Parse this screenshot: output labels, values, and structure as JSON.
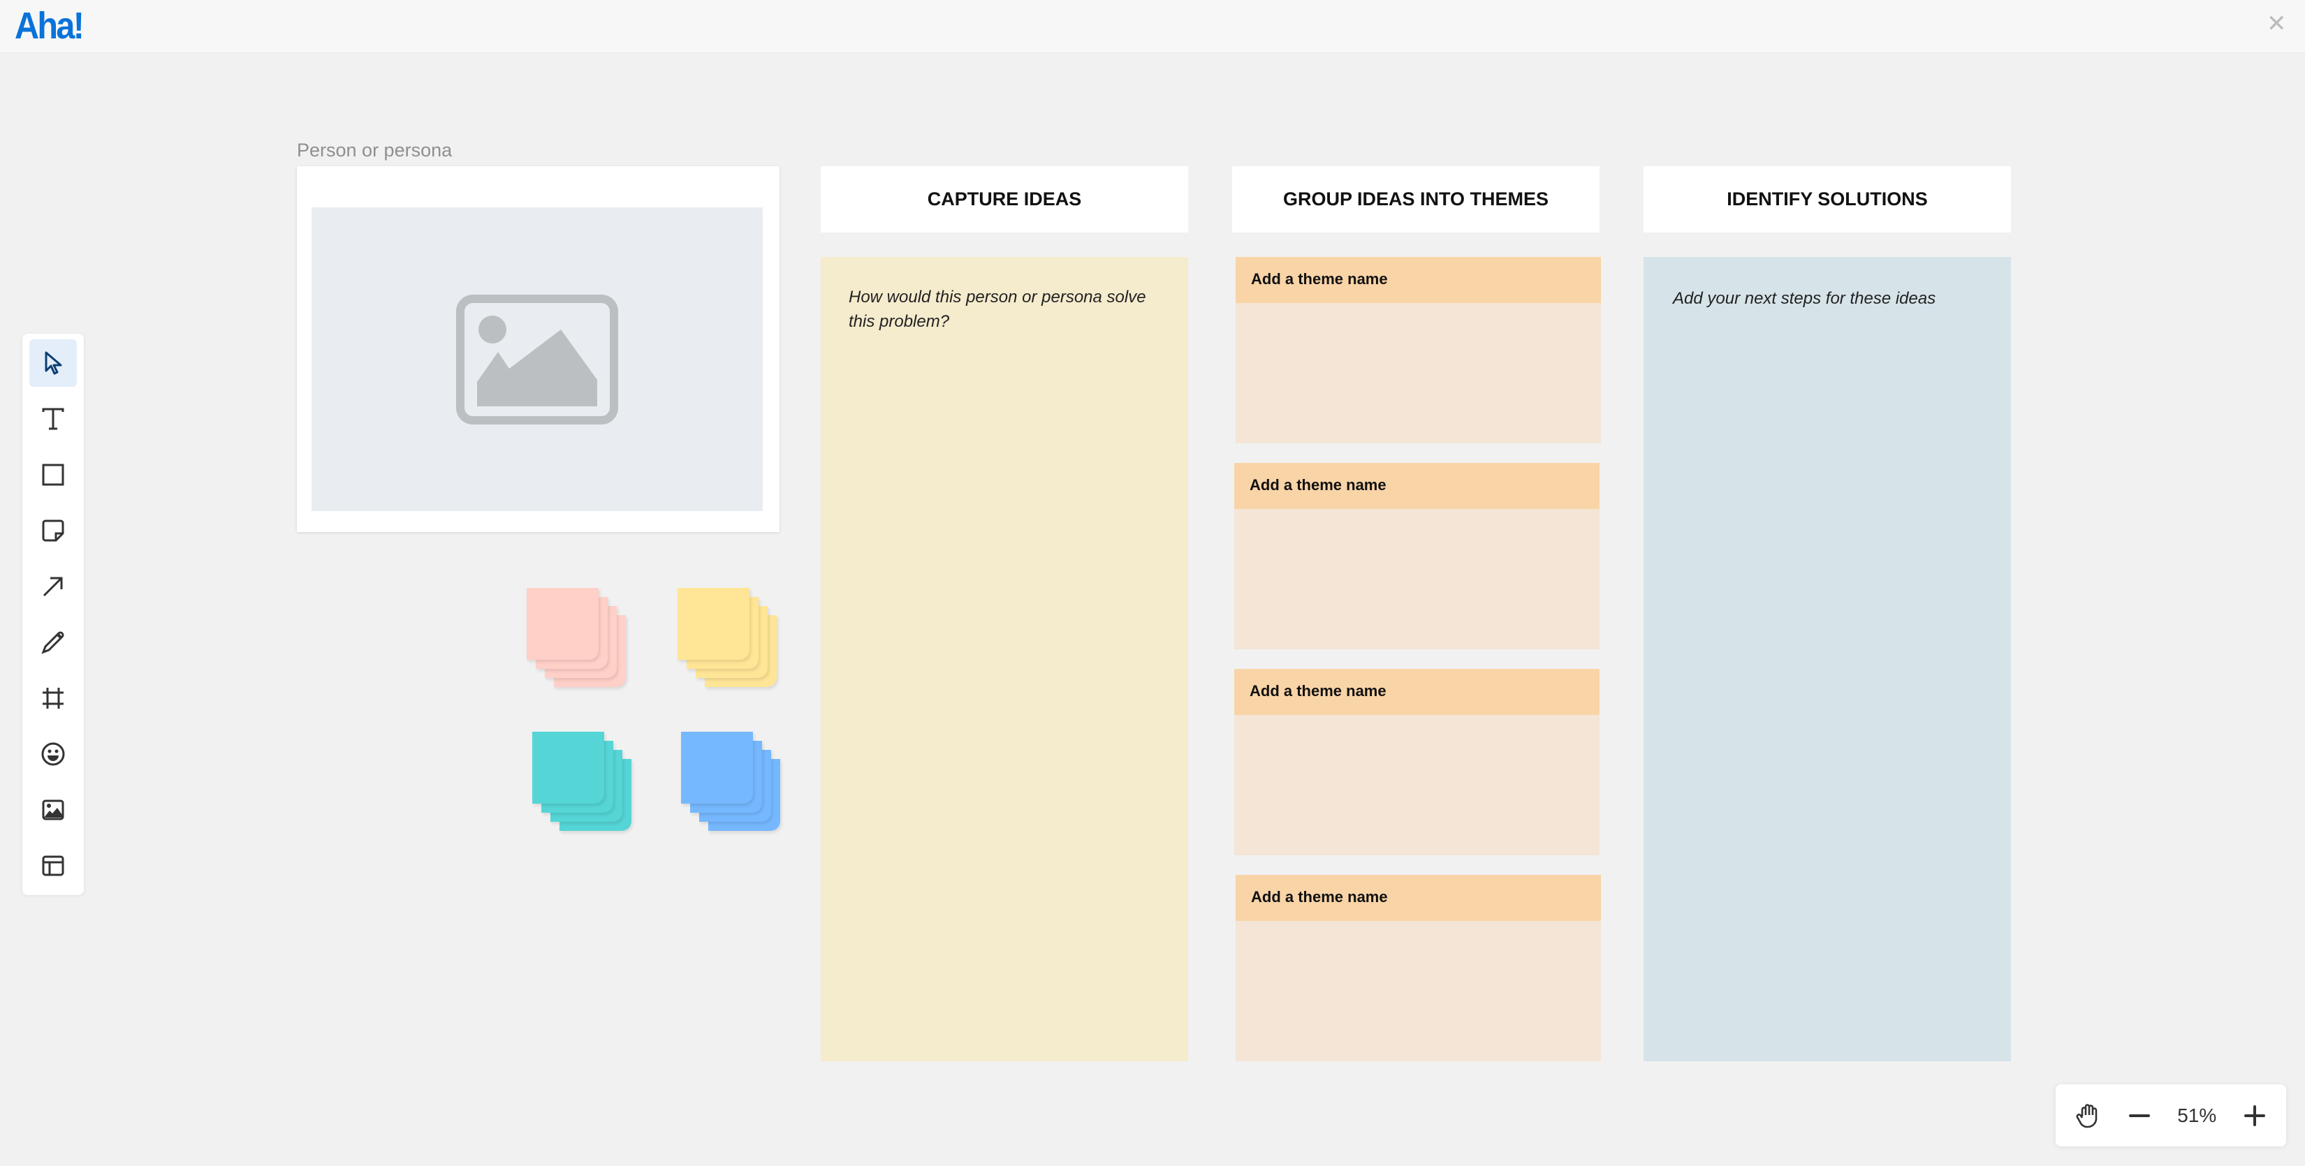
{
  "header": {
    "logo": "Aha!",
    "close_icon": "close-icon"
  },
  "persona": {
    "label": "Person or persona",
    "image_icon": "image-placeholder-icon"
  },
  "toolbar": {
    "tools": [
      {
        "name": "select",
        "icon": "cursor-icon",
        "active": true
      },
      {
        "name": "text",
        "icon": "text-icon"
      },
      {
        "name": "shape",
        "icon": "square-icon"
      },
      {
        "name": "sticky-note",
        "icon": "sticky-note-icon"
      },
      {
        "name": "arrow",
        "icon": "arrow-icon"
      },
      {
        "name": "pen",
        "icon": "pencil-icon"
      },
      {
        "name": "frame",
        "icon": "frame-icon"
      },
      {
        "name": "emoji",
        "icon": "smiley-icon"
      },
      {
        "name": "image",
        "icon": "image-icon"
      },
      {
        "name": "template",
        "icon": "layout-icon"
      }
    ]
  },
  "stickies": {
    "colors": [
      "#ffd0c8",
      "#ffe596",
      "#55d5d6",
      "#76b8ff"
    ]
  },
  "columns": [
    {
      "title": "CAPTURE IDEAS",
      "hint": "How would this person or persona solve this problem?",
      "color": "#f5ebcd"
    },
    {
      "title": "GROUP IDEAS INTO THEMES",
      "themes": [
        "Add a theme name",
        "Add a theme name",
        "Add a theme name",
        "Add a theme name"
      ]
    },
    {
      "title": "IDENTIFY SOLUTIONS",
      "hint": "Add your next steps for these ideas",
      "color": "#d6e3e9"
    }
  ],
  "zoom": {
    "value": "51%",
    "hand_icon": "hand-icon",
    "minus_icon": "minus-icon",
    "plus_icon": "plus-icon"
  }
}
